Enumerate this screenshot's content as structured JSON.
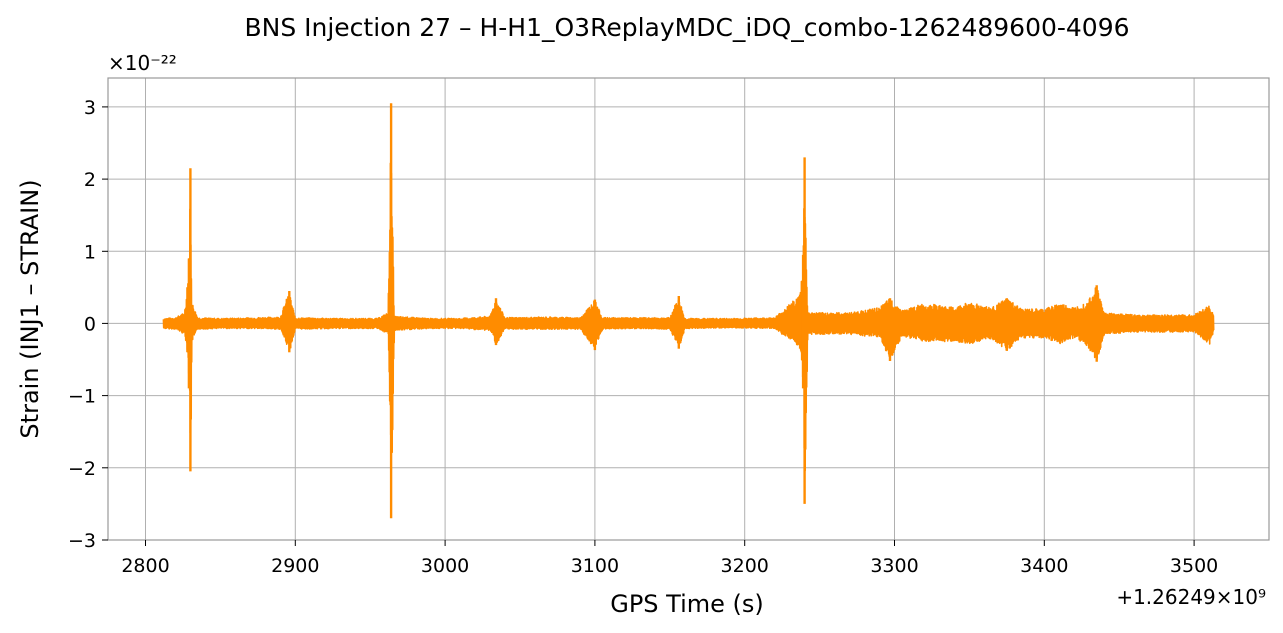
{
  "chart_data": {
    "type": "line",
    "title": "BNS Injection 27 – H-H1_O3ReplayMDC_iDQ_combo-1262489600-4096",
    "xlabel": "GPS Time (s)",
    "ylabel": "Strain (INJ1 – STRAIN)",
    "x_offset_label": "+1.26249×10⁹",
    "y_scale_label": "×10⁻²²",
    "xlim": [
      2775,
      3550
    ],
    "ylim": [
      -3.0,
      3.4
    ],
    "x_ticks": [
      {
        "value": 2800,
        "label": "2800"
      },
      {
        "value": 2900,
        "label": "2900"
      },
      {
        "value": 3000,
        "label": "3000"
      },
      {
        "value": 3100,
        "label": "3100"
      },
      {
        "value": 3200,
        "label": "3200"
      },
      {
        "value": 3300,
        "label": "3300"
      },
      {
        "value": 3400,
        "label": "3400"
      },
      {
        "value": 3500,
        "label": "3500"
      }
    ],
    "y_ticks": [
      {
        "value": 3,
        "label": "3"
      },
      {
        "value": 2,
        "label": "2"
      },
      {
        "value": 1,
        "label": "1"
      },
      {
        "value": 0,
        "label": "0"
      },
      {
        "value": -1,
        "label": "−1"
      },
      {
        "value": -2,
        "label": "−2"
      },
      {
        "value": -3,
        "label": "−3"
      }
    ],
    "grid": true,
    "color": "#ff8c00",
    "series": [
      {
        "x_range": [
          2812,
          3513
        ],
        "envelope": [
          [
            2812,
            0.07,
            -0.07
          ],
          [
            2820,
            0.08,
            -0.08
          ],
          [
            2826,
            0.15,
            -0.15
          ],
          [
            2828,
            0.5,
            -0.4
          ],
          [
            2829,
            0.9,
            -0.9
          ],
          [
            2830,
            2.15,
            -2.05
          ],
          [
            2831,
            0.3,
            -0.25
          ],
          [
            2835,
            0.08,
            -0.08
          ],
          [
            2850,
            0.07,
            -0.07
          ],
          [
            2870,
            0.08,
            -0.07
          ],
          [
            2890,
            0.09,
            -0.08
          ],
          [
            2896,
            0.45,
            -0.4
          ],
          [
            2900,
            0.08,
            -0.08
          ],
          [
            2930,
            0.07,
            -0.07
          ],
          [
            2955,
            0.07,
            -0.07
          ],
          [
            2962,
            0.15,
            -0.15
          ],
          [
            2964,
            3.05,
            -2.7
          ],
          [
            2966,
            0.1,
            -0.1
          ],
          [
            2990,
            0.07,
            -0.07
          ],
          [
            3010,
            0.07,
            -0.07
          ],
          [
            3030,
            0.1,
            -0.1
          ],
          [
            3034,
            0.35,
            -0.3
          ],
          [
            3040,
            0.08,
            -0.08
          ],
          [
            3070,
            0.09,
            -0.08
          ],
          [
            3090,
            0.08,
            -0.08
          ],
          [
            3100,
            0.33,
            -0.37
          ],
          [
            3105,
            0.08,
            -0.08
          ],
          [
            3130,
            0.08,
            -0.07
          ],
          [
            3150,
            0.08,
            -0.08
          ],
          [
            3156,
            0.38,
            -0.35
          ],
          [
            3160,
            0.07,
            -0.07
          ],
          [
            3190,
            0.07,
            -0.06
          ],
          [
            3220,
            0.08,
            -0.07
          ],
          [
            3237,
            0.4,
            -0.35
          ],
          [
            3239,
            0.95,
            -0.9
          ],
          [
            3240,
            2.3,
            -2.5
          ],
          [
            3242,
            0.15,
            -0.15
          ],
          [
            3250,
            0.15,
            -0.15
          ],
          [
            3270,
            0.15,
            -0.15
          ],
          [
            3290,
            0.22,
            -0.2
          ],
          [
            3297,
            0.35,
            -0.52
          ],
          [
            3305,
            0.18,
            -0.18
          ],
          [
            3320,
            0.28,
            -0.25
          ],
          [
            3340,
            0.22,
            -0.25
          ],
          [
            3350,
            0.3,
            -0.28
          ],
          [
            3365,
            0.22,
            -0.22
          ],
          [
            3375,
            0.35,
            -0.38
          ],
          [
            3385,
            0.2,
            -0.2
          ],
          [
            3400,
            0.2,
            -0.2
          ],
          [
            3410,
            0.28,
            -0.28
          ],
          [
            3420,
            0.22,
            -0.2
          ],
          [
            3428,
            0.3,
            -0.3
          ],
          [
            3435,
            0.53,
            -0.53
          ],
          [
            3440,
            0.15,
            -0.15
          ],
          [
            3460,
            0.12,
            -0.12
          ],
          [
            3480,
            0.12,
            -0.12
          ],
          [
            3500,
            0.12,
            -0.12
          ],
          [
            3510,
            0.25,
            -0.3
          ],
          [
            3513,
            0.12,
            -0.12
          ]
        ]
      }
    ]
  }
}
